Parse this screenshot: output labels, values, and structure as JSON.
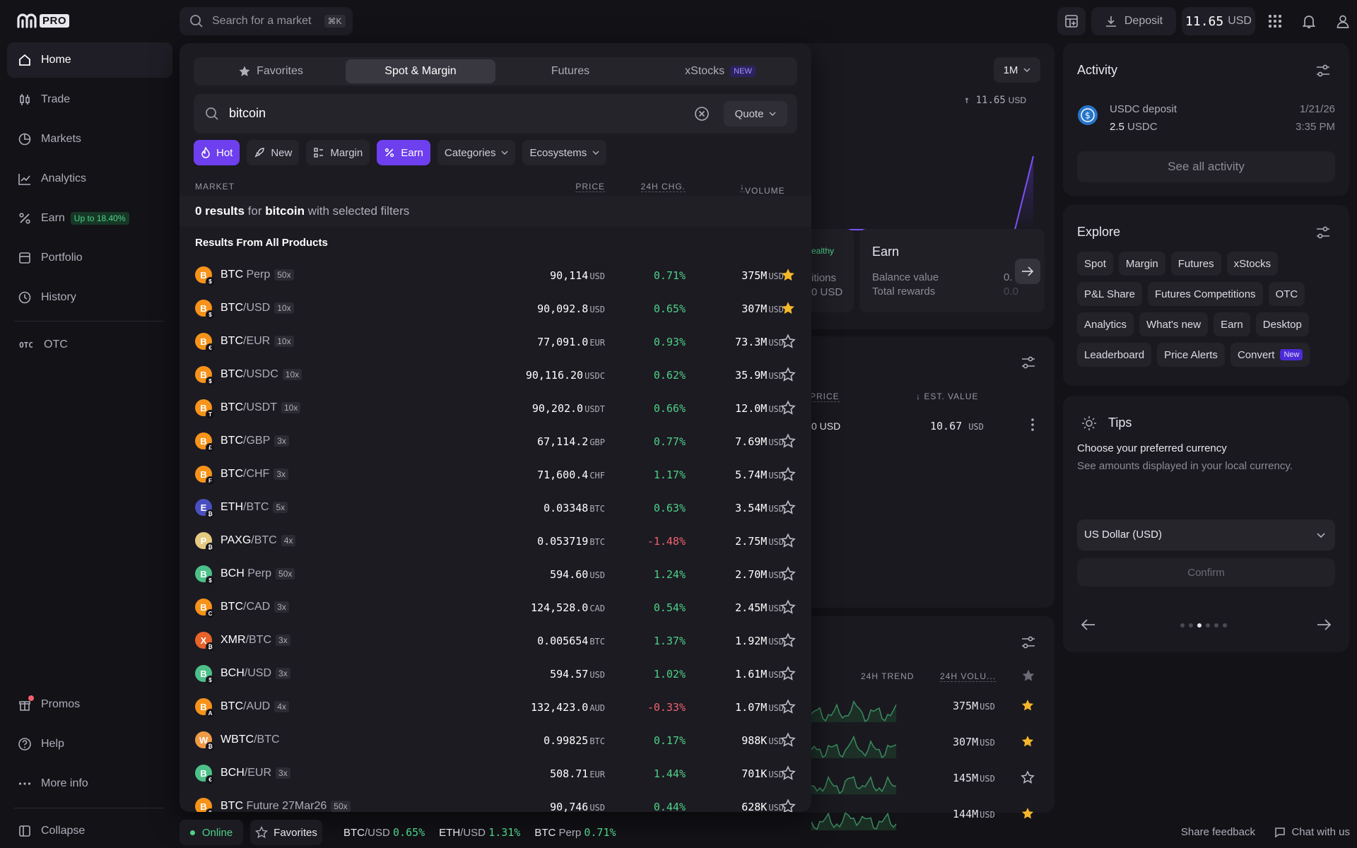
{
  "logo": {
    "badge": "PRO"
  },
  "sidebar": {
    "items": [
      {
        "label": "Home"
      },
      {
        "label": "Trade"
      },
      {
        "label": "Markets"
      },
      {
        "label": "Analytics"
      },
      {
        "label": "Earn",
        "badge": "Up to 18.40%"
      },
      {
        "label": "Portfolio"
      },
      {
        "label": "History"
      }
    ],
    "otc": {
      "icon_text": "OTC",
      "label": "OTC"
    },
    "bottom": [
      {
        "label": "Promos"
      },
      {
        "label": "Help"
      },
      {
        "label": "More info"
      },
      {
        "label": "Collapse"
      }
    ]
  },
  "topbar": {
    "search_placeholder": "Search for a market",
    "shortcut": "⌘K",
    "deposit": "Deposit",
    "balance_value": "11.65",
    "balance_unit": "USD"
  },
  "background": {
    "range": "1M",
    "chart_value": "↑ 11.65",
    "chart_unit": "USD",
    "card_fragment1": "ealthy",
    "card_fragment2": "itions",
    "card_fragment3": "0 USD",
    "earn": {
      "title": "Earn",
      "balance": "Balance value",
      "rewards": "Total rewards",
      "frag1": "0.",
      "frag2": "0.0"
    },
    "holdings": {
      "price_h": "PRICE",
      "est_h": "EST. VALUE",
      "price_frag": "0 USD",
      "est_value": "10.67",
      "est_unit": "USD"
    },
    "watch": {
      "trend_h": "24H TREND",
      "vol_h": "24H VOLU...",
      "rows": [
        {
          "v": "375M",
          "u": "USD",
          "fav": true
        },
        {
          "v": "307M",
          "u": "USD",
          "fav": true
        },
        {
          "v": "145M",
          "u": "USD",
          "fav": false
        },
        {
          "v": "144M",
          "u": "USD",
          "fav": true
        }
      ]
    }
  },
  "activity": {
    "title": "Activity",
    "item": {
      "title": "USDC deposit",
      "amount": "2.5",
      "unit": "USDC",
      "date": "1/21/26",
      "time": "3:35 PM"
    },
    "see_all": "See all activity"
  },
  "explore": {
    "title": "Explore",
    "chips": [
      "Spot",
      "Margin",
      "Futures",
      "xStocks",
      "P&L Share",
      "Futures Competitions",
      "OTC",
      "Analytics",
      "What's new",
      "Earn",
      "Desktop",
      "Leaderboard",
      "Price Alerts",
      "Convert"
    ],
    "convert_badge": "New"
  },
  "tips": {
    "title": "Tips",
    "heading": "Choose your preferred currency",
    "body": "See amounts displayed in your local currency.",
    "select": "US Dollar (USD)",
    "confirm": "Confirm"
  },
  "popup": {
    "tabs": [
      {
        "label": "Favorites"
      },
      {
        "label": "Spot & Margin"
      },
      {
        "label": "Futures"
      },
      {
        "label": "xStocks",
        "badge": "NEW"
      }
    ],
    "search_value": "bitcoin",
    "quote": "Quote",
    "filters": [
      {
        "label": "Hot"
      },
      {
        "label": "New"
      },
      {
        "label": "Margin"
      },
      {
        "label": "Earn"
      },
      {
        "label": "Categories"
      },
      {
        "label": "Ecosystems"
      }
    ],
    "headers": {
      "market": "MARKET",
      "price": "PRICE",
      "change": "24H CHG.",
      "volume": "VOLUME"
    },
    "no_results": {
      "count": "0 results",
      "for": " for ",
      "term": "bitcoin",
      "rest": " with selected filters"
    },
    "section": "Results From All Products",
    "rows": [
      {
        "base": "BTC",
        "quote": " Perp",
        "lev": "50x",
        "price": "90,114",
        "pu": "USD",
        "chg": "0.71%",
        "dir": "up",
        "vol": "375M",
        "vu": "USD",
        "fav": true,
        "coin": "#f7931a",
        "sub": "$"
      },
      {
        "base": "BTC",
        "quote": "/USD",
        "lev": "10x",
        "price": "90,092.8",
        "pu": "USD",
        "chg": "0.65%",
        "dir": "up",
        "vol": "307M",
        "vu": "USD",
        "fav": true,
        "coin": "#f7931a",
        "sub": "$"
      },
      {
        "base": "BTC",
        "quote": "/EUR",
        "lev": "10x",
        "price": "77,091.0",
        "pu": "EUR",
        "chg": "0.93%",
        "dir": "up",
        "vol": "73.3M",
        "vu": "USD",
        "fav": false,
        "coin": "#f7931a",
        "sub": "€"
      },
      {
        "base": "BTC",
        "quote": "/USDC",
        "lev": "10x",
        "price": "90,116.20",
        "pu": "USDC",
        "chg": "0.62%",
        "dir": "up",
        "vol": "35.9M",
        "vu": "USD",
        "fav": false,
        "coin": "#f7931a",
        "sub": "$"
      },
      {
        "base": "BTC",
        "quote": "/USDT",
        "lev": "10x",
        "price": "90,202.0",
        "pu": "USDT",
        "chg": "0.66%",
        "dir": "up",
        "vol": "12.0M",
        "vu": "USD",
        "fav": false,
        "coin": "#f7931a",
        "sub": "T"
      },
      {
        "base": "BTC",
        "quote": "/GBP",
        "lev": "3x",
        "price": "67,114.2",
        "pu": "GBP",
        "chg": "0.77%",
        "dir": "up",
        "vol": "7.69M",
        "vu": "USD",
        "fav": false,
        "coin": "#f7931a",
        "sub": "£"
      },
      {
        "base": "BTC",
        "quote": "/CHF",
        "lev": "3x",
        "price": "71,600.4",
        "pu": "CHF",
        "chg": "1.17%",
        "dir": "up",
        "vol": "5.74M",
        "vu": "USD",
        "fav": false,
        "coin": "#f7931a",
        "sub": "F"
      },
      {
        "base": "ETH",
        "quote": "/BTC",
        "lev": "5x",
        "price": "0.03348",
        "pu": "BTC",
        "chg": "0.63%",
        "dir": "up",
        "vol": "3.54M",
        "vu": "USD",
        "fav": false,
        "coin": "#4a4fbf",
        "sub": "₿"
      },
      {
        "base": "PAXG",
        "quote": "/BTC",
        "lev": "4x",
        "price": "0.053719",
        "pu": "BTC",
        "chg": "-1.48%",
        "dir": "dn",
        "vol": "2.75M",
        "vu": "USD",
        "fav": false,
        "coin": "#e4c980",
        "sub": "₿"
      },
      {
        "base": "BCH",
        "quote": " Perp",
        "lev": "50x",
        "price": "594.60",
        "pu": "USD",
        "chg": "1.24%",
        "dir": "up",
        "vol": "2.70M",
        "vu": "USD",
        "fav": false,
        "coin": "#4cc088",
        "sub": "$"
      },
      {
        "base": "BTC",
        "quote": "/CAD",
        "lev": "3x",
        "price": "124,528.0",
        "pu": "CAD",
        "chg": "0.54%",
        "dir": "up",
        "vol": "2.45M",
        "vu": "USD",
        "fav": false,
        "coin": "#f7931a",
        "sub": "C"
      },
      {
        "base": "XMR",
        "quote": "/BTC",
        "lev": "3x",
        "price": "0.005654",
        "pu": "BTC",
        "chg": "1.37%",
        "dir": "up",
        "vol": "1.92M",
        "vu": "USD",
        "fav": false,
        "coin": "#e8632a",
        "sub": "₿"
      },
      {
        "base": "BCH",
        "quote": "/USD",
        "lev": "3x",
        "price": "594.57",
        "pu": "USD",
        "chg": "1.02%",
        "dir": "up",
        "vol": "1.61M",
        "vu": "USD",
        "fav": false,
        "coin": "#4cc088",
        "sub": "$"
      },
      {
        "base": "BTC",
        "quote": "/AUD",
        "lev": "4x",
        "price": "132,423.0",
        "pu": "AUD",
        "chg": "-0.33%",
        "dir": "dn",
        "vol": "1.07M",
        "vu": "USD",
        "fav": false,
        "coin": "#f7931a",
        "sub": "A"
      },
      {
        "base": "WBTC",
        "quote": "/BTC",
        "lev": "",
        "price": "0.99825",
        "pu": "BTC",
        "chg": "0.17%",
        "dir": "up",
        "vol": "988K",
        "vu": "USD",
        "fav": false,
        "coin": "#f09a45",
        "sub": "₿"
      },
      {
        "base": "BCH",
        "quote": "/EUR",
        "lev": "3x",
        "price": "508.71",
        "pu": "EUR",
        "chg": "1.44%",
        "dir": "up",
        "vol": "701K",
        "vu": "USD",
        "fav": false,
        "coin": "#4cc088",
        "sub": "€"
      },
      {
        "base": "BTC",
        "quote": " Future 27Mar26",
        "lev": "50x",
        "price": "90,746",
        "pu": "USD",
        "chg": "0.44%",
        "dir": "up",
        "vol": "628K",
        "vu": "USD",
        "fav": false,
        "coin": "#f7931a",
        "sub": "$"
      }
    ]
  },
  "bottombar": {
    "online": "Online",
    "favorites": "Favorites",
    "tickers": [
      {
        "base": "BTC",
        "quote": "/USD",
        "chg": "0.65%"
      },
      {
        "base": "ETH",
        "quote": "/USD",
        "chg": "1.31%"
      },
      {
        "base": "BTC",
        "quote": " Perp",
        "chg": "0.71%"
      }
    ],
    "feedback": "Share feedback",
    "chat": "Chat with us"
  },
  "colors": {
    "accent": "#6e3fee",
    "up": "#4ed187",
    "down": "#f0616d",
    "star": "#f5b72a"
  }
}
